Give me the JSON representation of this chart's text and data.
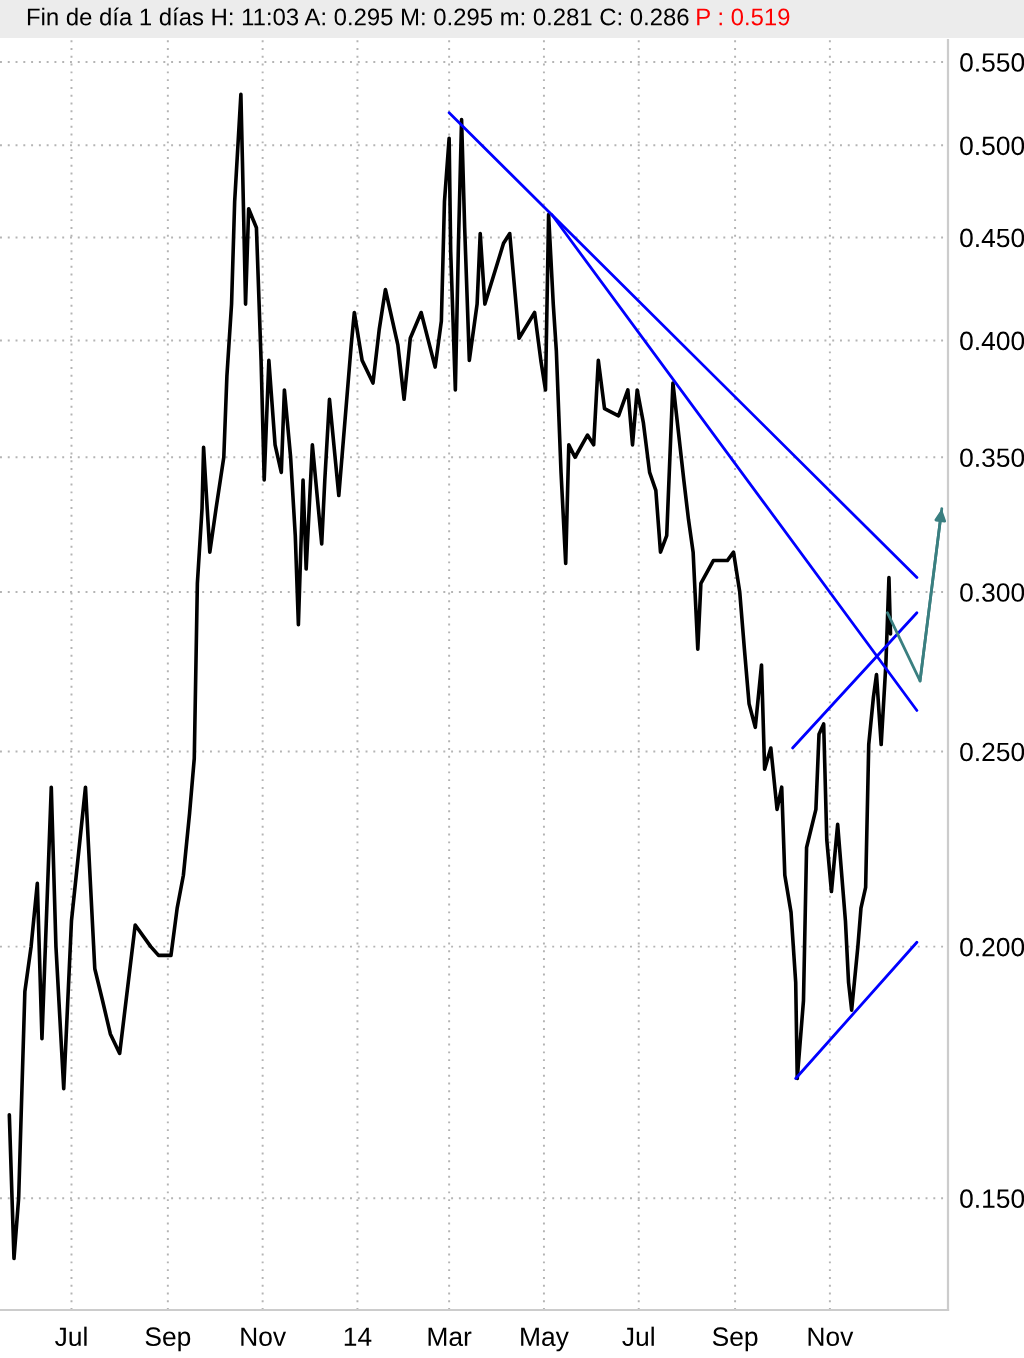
{
  "chart_data": {
    "type": "line",
    "title": "Fin de día 1 días H: 11:03 A: 0.295 M: 0.295 m: 0.281 C: 0.286",
    "annotations": [
      "P : 0.519"
    ],
    "series": [
      {
        "color": "#000000",
        "x": [
          "2013-05-22",
          "2013-05-25",
          "2013-05-28",
          "2013-06-01",
          "2013-06-05",
          "2013-06-09",
          "2013-06-12",
          "2013-06-18",
          "2013-06-21",
          "2013-06-26",
          "2013-07-01",
          "2013-07-10",
          "2013-07-16",
          "2013-07-21",
          "2013-07-26",
          "2013-08-01",
          "2013-08-11",
          "2013-08-21",
          "2013-08-26",
          "2013-09-03",
          "2013-09-07",
          "2013-09-11",
          "2013-09-15",
          "2013-09-18",
          "2013-09-20",
          "2013-09-23",
          "2013-09-24",
          "2013-09-28",
          "2013-10-02",
          "2013-10-07",
          "2013-10-09",
          "2013-10-12",
          "2013-10-14",
          "2013-10-18",
          "2013-10-19",
          "2013-10-21",
          "2013-10-23",
          "2013-10-28",
          "2013-10-31",
          "2013-11-02",
          "2013-11-05",
          "2013-11-09",
          "2013-11-13",
          "2013-11-15",
          "2013-11-19",
          "2013-11-22",
          "2013-11-24",
          "2013-11-27",
          "2013-11-29",
          "2013-12-03",
          "2013-12-09",
          "2013-12-11",
          "2013-12-14",
          "2013-12-20",
          "2013-12-28",
          "2013-12-30",
          "2014-01-04",
          "2014-01-11",
          "2014-01-15",
          "2014-01-19",
          "2014-01-27",
          "2014-01-31",
          "2014-02-04",
          "2014-02-11",
          "2014-02-20",
          "2014-02-24",
          "2014-02-26",
          "2014-03-01",
          "2014-03-02",
          "2014-03-05",
          "2014-03-07",
          "2014-03-09",
          "2014-03-11",
          "2014-03-14",
          "2014-03-19",
          "2014-03-21",
          "2014-03-24",
          "2014-04-05",
          "2014-04-09",
          "2014-04-15",
          "2014-04-25",
          "2014-04-29",
          "2014-05-02",
          "2014-05-04",
          "2014-05-07",
          "2014-05-09",
          "2014-05-12",
          "2014-05-15",
          "2014-05-17",
          "2014-05-21",
          "2014-05-29",
          "2014-06-02",
          "2014-06-05",
          "2014-06-09",
          "2014-06-18",
          "2014-06-24",
          "2014-06-27",
          "2014-06-30",
          "2014-07-04",
          "2014-07-08",
          "2014-07-12",
          "2014-07-15",
          "2014-07-19",
          "2014-07-23",
          "2014-07-30",
          "2014-08-02",
          "2014-08-05",
          "2014-08-08",
          "2014-08-10",
          "2014-08-18",
          "2014-08-27",
          "2014-08-31",
          "2014-09-04",
          "2014-09-07",
          "2014-09-10",
          "2014-09-14",
          "2014-09-18",
          "2014-09-20",
          "2014-09-24",
          "2014-09-28",
          "2014-10-01",
          "2014-10-03",
          "2014-10-07",
          "2014-10-10",
          "2014-10-11",
          "2014-10-15",
          "2014-10-17",
          "2014-10-23",
          "2014-10-25",
          "2014-10-28",
          "2014-10-30",
          "2014-11-02",
          "2014-11-06",
          "2014-11-11",
          "2014-11-13",
          "2014-11-15",
          "2014-11-19",
          "2014-11-21",
          "2014-11-24",
          "2014-11-26",
          "2014-11-29",
          "2014-12-01",
          "2014-12-04",
          "2014-12-07",
          "2014-12-09",
          "2014-12-10"
        ],
        "values": [
          0.165,
          0.14,
          0.15,
          0.19,
          0.2,
          0.215,
          0.18,
          0.24,
          0.2,
          0.17,
          0.206,
          0.24,
          0.195,
          0.188,
          0.181,
          0.177,
          0.205,
          0.2,
          0.198,
          0.198,
          0.209,
          0.217,
          0.233,
          0.248,
          0.303,
          0.33,
          0.354,
          0.314,
          0.33,
          0.35,
          0.384,
          0.417,
          0.469,
          0.53,
          0.491,
          0.417,
          0.465,
          0.455,
          0.391,
          0.341,
          0.391,
          0.355,
          0.344,
          0.378,
          0.35,
          0.32,
          0.289,
          0.341,
          0.308,
          0.355,
          0.317,
          0.341,
          0.374,
          0.335,
          0.398,
          0.413,
          0.391,
          0.381,
          0.405,
          0.424,
          0.398,
          0.374,
          0.401,
          0.413,
          0.388,
          0.409,
          0.469,
          0.504,
          0.443,
          0.378,
          0.447,
          0.515,
          0.455,
          0.391,
          0.417,
          0.452,
          0.417,
          0.447,
          0.452,
          0.401,
          0.413,
          0.391,
          0.378,
          0.462,
          0.417,
          0.395,
          0.344,
          0.31,
          0.355,
          0.35,
          0.359,
          0.355,
          0.391,
          0.37,
          0.367,
          0.378,
          0.355,
          0.378,
          0.364,
          0.344,
          0.337,
          0.314,
          0.32,
          0.381,
          0.341,
          0.326,
          0.314,
          0.281,
          0.303,
          0.311,
          0.311,
          0.314,
          0.3,
          0.281,
          0.264,
          0.257,
          0.276,
          0.245,
          0.251,
          0.234,
          0.24,
          0.217,
          0.208,
          0.192,
          0.172,
          0.188,
          0.224,
          0.234,
          0.255,
          0.258,
          0.226,
          0.213,
          0.23,
          0.206,
          0.192,
          0.186,
          0.2,
          0.209,
          0.214,
          0.252,
          0.266,
          0.273,
          0.252,
          0.276,
          0.305,
          0.286
        ]
      },
      {
        "color": "#0000ff",
        "x": [
          "2014-03-01",
          "2014-12-27"
        ],
        "values": [
          0.519,
          0.305
        ]
      },
      {
        "color": "#0000ff",
        "x": [
          "2014-05-06",
          "2014-12-27"
        ],
        "values": [
          0.462,
          0.262
        ]
      },
      {
        "color": "#0000ff",
        "x": [
          "2014-10-08",
          "2014-12-27"
        ],
        "values": [
          0.251,
          0.293
        ]
      },
      {
        "color": "#0000ff",
        "x": [
          "2014-10-10",
          "2014-12-27"
        ],
        "values": [
          0.172,
          0.201
        ]
      },
      {
        "color": "#3a7f80",
        "x": [
          "2014-12-08",
          "2014-12-29",
          "2015-01-12"
        ],
        "values": [
          0.293,
          0.271,
          0.33
        ]
      }
    ],
    "xlim": [
      "2013-05-16",
      "2015-01-16"
    ],
    "xticks": [
      {
        "value": "2013-07-01",
        "label": "Jul"
      },
      {
        "value": "2013-09-01",
        "label": "Sep"
      },
      {
        "value": "2013-11-01",
        "label": "Nov"
      },
      {
        "value": "2014-01-01",
        "label": "14"
      },
      {
        "value": "2014-03-01",
        "label": "Mar"
      },
      {
        "value": "2014-05-01",
        "label": "May"
      },
      {
        "value": "2014-07-01",
        "label": "Jul"
      },
      {
        "value": "2014-09-01",
        "label": "Sep"
      },
      {
        "value": "2014-11-01",
        "label": "Nov"
      }
    ],
    "ylim": [
      0.132,
      0.564
    ],
    "yticks": [
      {
        "value": 0.15,
        "label": "0.150"
      },
      {
        "value": 0.2,
        "label": "0.200"
      },
      {
        "value": 0.25,
        "label": "0.250"
      },
      {
        "value": 0.3,
        "label": "0.300"
      },
      {
        "value": 0.35,
        "label": "0.350"
      },
      {
        "value": 0.4,
        "label": "0.400"
      },
      {
        "value": 0.45,
        "label": "0.450"
      },
      {
        "value": 0.5,
        "label": "0.500"
      },
      {
        "value": 0.55,
        "label": "0.550"
      }
    ],
    "log": "y",
    "grid": true
  }
}
